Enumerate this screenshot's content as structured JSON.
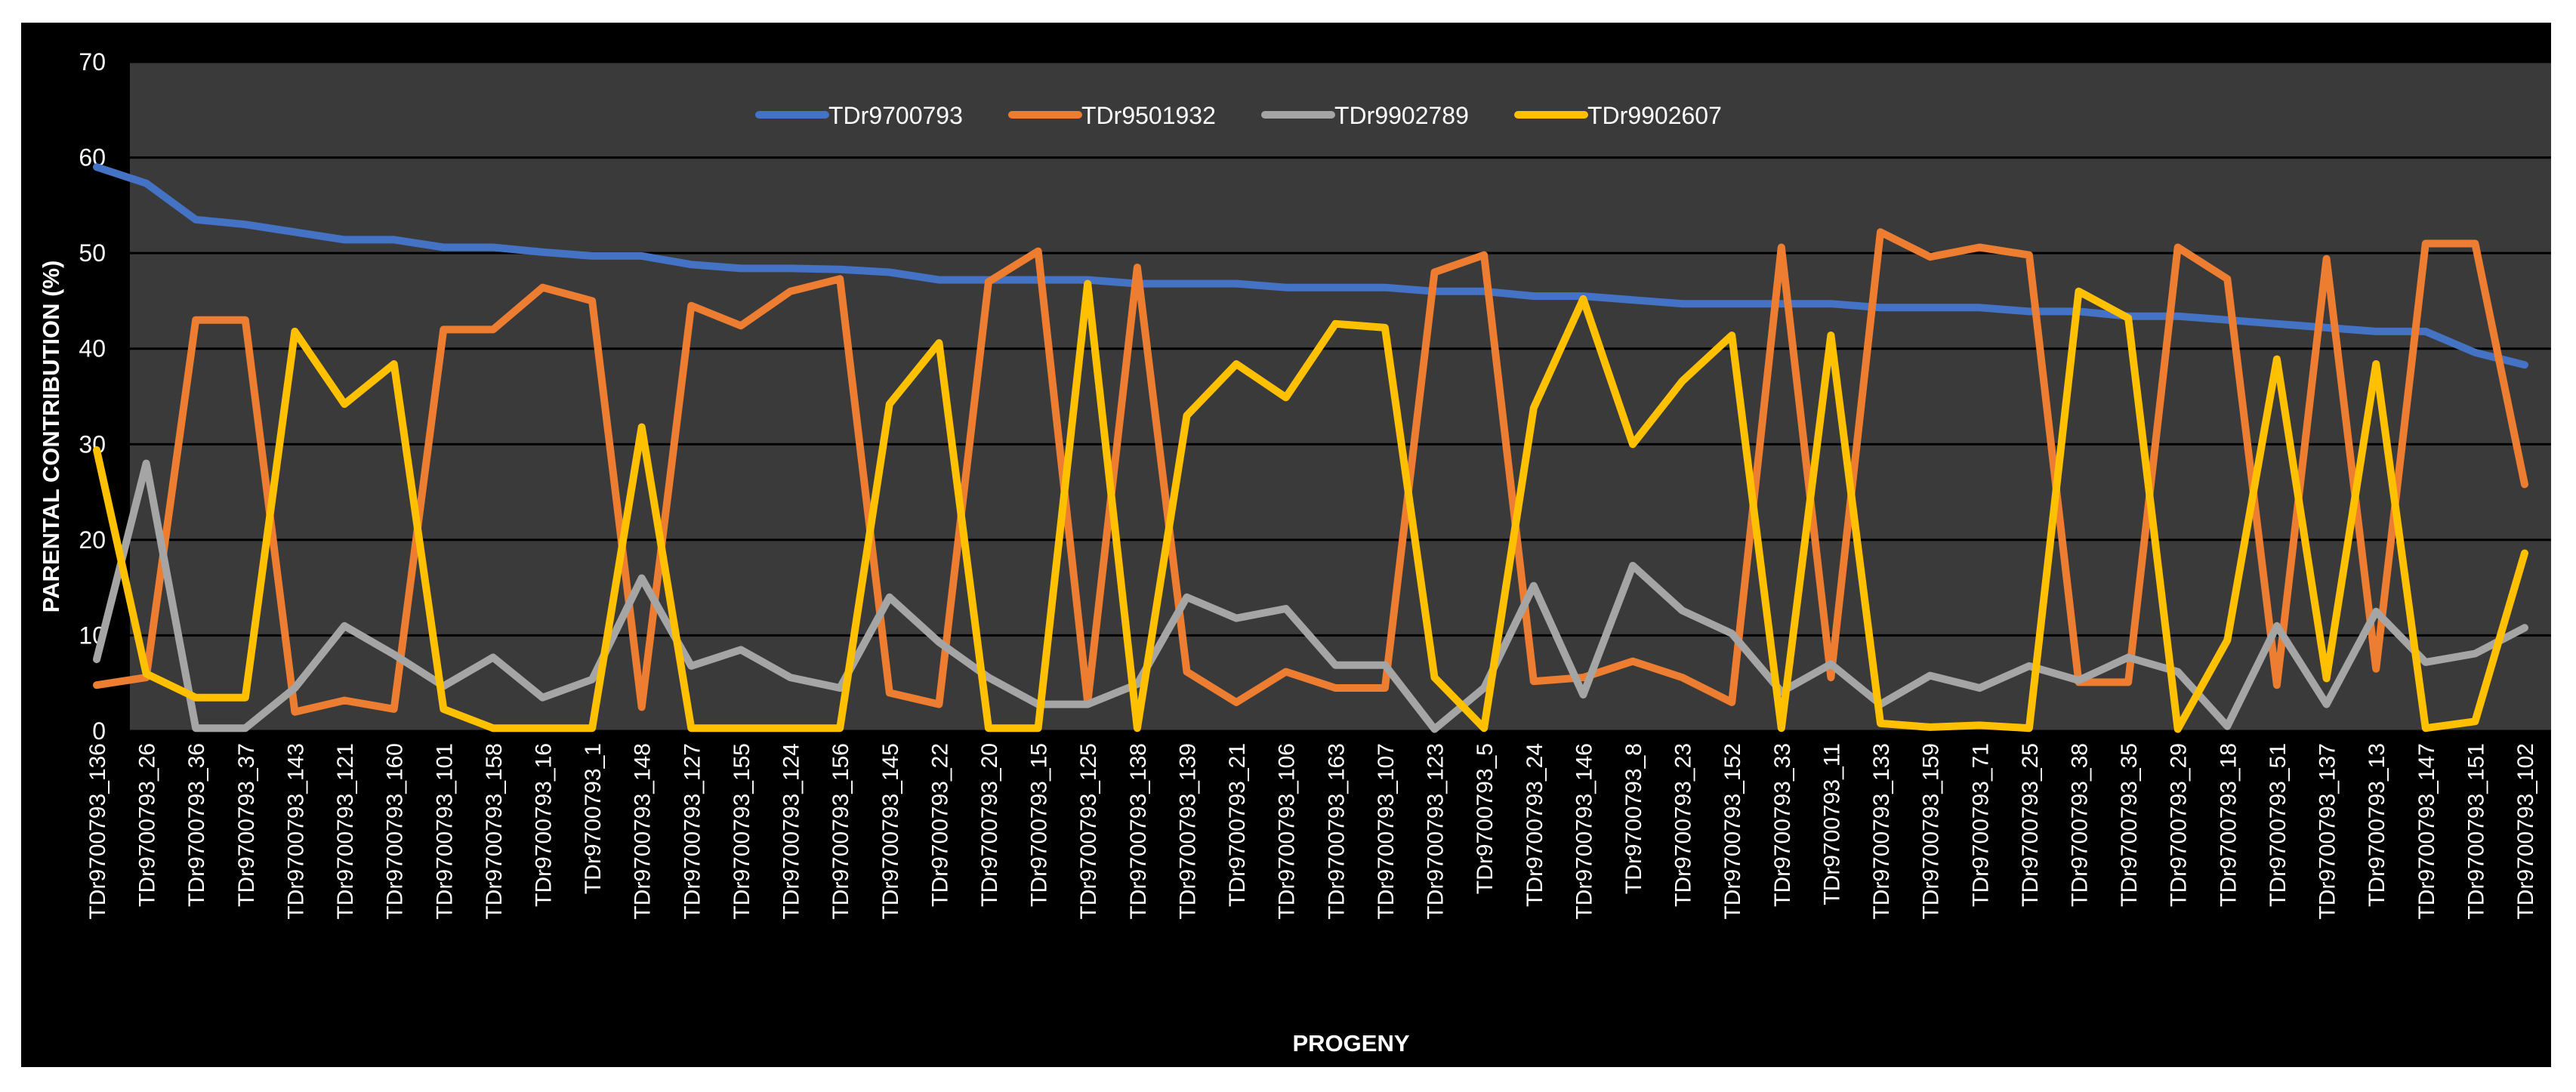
{
  "chart_data": {
    "type": "line",
    "title": "",
    "xlabel": "PROGENY",
    "ylabel": "PARENTAL CONTRIBUTION (%)",
    "ylim": [
      0,
      70
    ],
    "yticks": [
      0,
      10,
      20,
      30,
      40,
      50,
      60,
      70
    ],
    "grid": "horizontal",
    "legend_position": "top-center",
    "categories": [
      "TDr9700793_136",
      "TDr9700793_26",
      "TDr9700793_36",
      "TDr9700793_37",
      "TDr9700793_143",
      "TDr9700793_121",
      "TDr9700793_160",
      "TDr9700793_101",
      "TDr9700793_158",
      "TDr9700793_16",
      "TDr9700793_1",
      "TDr9700793_148",
      "TDr9700793_127",
      "TDr9700793_155",
      "TDr9700793_124",
      "TDr9700793_156",
      "TDr9700793_145",
      "TDr9700793_22",
      "TDr9700793_20",
      "TDr9700793_15",
      "TDr9700793_125",
      "TDr9700793_138",
      "TDr9700793_139",
      "TDr9700793_21",
      "TDr9700793_106",
      "TDr9700793_163",
      "TDr9700793_107",
      "TDr9700793_123",
      "TDr9700793_5",
      "TDr9700793_24",
      "TDr9700793_146",
      "TDr9700793_8",
      "TDr9700793_23",
      "TDr9700793_152",
      "TDr9700793_33",
      "TDr9700793_11",
      "TDr9700793_133",
      "TDr9700793_159",
      "TDr9700793_71",
      "TDr9700793_25",
      "TDr9700793_38",
      "TDr9700793_35",
      "TDr9700793_29",
      "TDr9700793_18",
      "TDr9700793_51",
      "TDr9700793_137",
      "TDr9700793_13",
      "TDr9700793_147",
      "TDr9700793_151",
      "TDr9700793_102"
    ],
    "series": [
      {
        "name": "TDr9700793",
        "color": "#4472c4",
        "values": [
          59,
          57.3,
          53.5,
          53,
          52.2,
          51.4,
          51.4,
          50.6,
          50.6,
          50.1,
          49.7,
          49.7,
          48.8,
          48.4,
          48.4,
          48.3,
          48,
          47.2,
          47.2,
          47.2,
          47.2,
          46.8,
          46.8,
          46.8,
          46.4,
          46.4,
          46.4,
          46,
          46,
          45.5,
          45.5,
          45.1,
          44.7,
          44.7,
          44.7,
          44.7,
          44.3,
          44.3,
          44.3,
          43.9,
          43.9,
          43.4,
          43.4,
          43,
          42.6,
          42.2,
          41.8,
          41.8,
          39.6,
          38.3
        ]
      },
      {
        "name": "TDr9501932",
        "color": "#ed7d31",
        "values": [
          4.8,
          5.6,
          43,
          43,
          2,
          3.2,
          2.3,
          42,
          42,
          46.4,
          45,
          2.5,
          44.5,
          42.4,
          46,
          47.3,
          4,
          2.8,
          47,
          50.2,
          3,
          48.5,
          6.2,
          3,
          6.2,
          4.5,
          4.5,
          48,
          49.8,
          5.2,
          5.6,
          7.3,
          5.6,
          3,
          50.6,
          5.6,
          52.2,
          49.6,
          50.6,
          49.8,
          5.1,
          5.1,
          50.6,
          47.3,
          4.8,
          49.4,
          6.5,
          51,
          51,
          25.8
        ]
      },
      {
        "name": "TDr9902789",
        "color": "#a5a5a5",
        "values": [
          7.5,
          28,
          0.3,
          0.3,
          4.5,
          11,
          8,
          4.7,
          7.7,
          3.5,
          5.4,
          16,
          6.8,
          8.5,
          5.6,
          4.5,
          14,
          9.3,
          5.6,
          2.8,
          2.8,
          4.9,
          14,
          11.8,
          12.8,
          6.9,
          6.9,
          0.2,
          4.5,
          15.2,
          3.8,
          17.3,
          12.6,
          10.2,
          4.1,
          7,
          2.8,
          5.8,
          4.5,
          6.8,
          5.3,
          7.7,
          6.2,
          0.5,
          11,
          2.8,
          12.5,
          7.2,
          8.1,
          10.8
        ]
      },
      {
        "name": "TDr9902607",
        "color": "#ffc000",
        "values": [
          29.4,
          6,
          3.5,
          3.5,
          41.8,
          34.2,
          38.4,
          2.3,
          0.3,
          0.3,
          0.3,
          31.8,
          0.3,
          0.3,
          0.3,
          0.3,
          34.2,
          40.6,
          0.3,
          0.3,
          46.8,
          0.3,
          33,
          38.4,
          34.9,
          42.6,
          42.2,
          5.6,
          0.3,
          33.8,
          45.2,
          30,
          36.6,
          41.4,
          0.3,
          41.4,
          0.8,
          0.4,
          0.6,
          0.3,
          46,
          43.2,
          0.2,
          9.5,
          38.9,
          5.5,
          38.4,
          0.3,
          1,
          18.6
        ]
      }
    ]
  }
}
